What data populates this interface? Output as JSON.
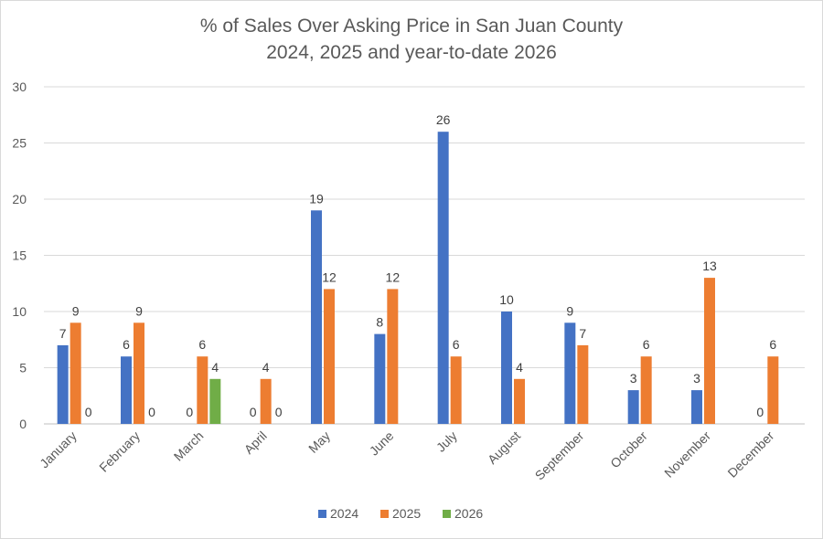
{
  "chart_data": {
    "type": "bar",
    "title": "% of Sales Over Asking Price in San Juan County",
    "subtitle": "2024, 2025 and year-to-date 2026",
    "categories": [
      "January",
      "February",
      "March",
      "April",
      "May",
      "June",
      "July",
      "August",
      "September",
      "October",
      "November",
      "December"
    ],
    "series": [
      {
        "name": "2024",
        "color": "#4472c4",
        "values": [
          7,
          6,
          0,
          0,
          19,
          8,
          26,
          10,
          9,
          3,
          3,
          0
        ]
      },
      {
        "name": "2025",
        "color": "#ed7d31",
        "values": [
          9,
          9,
          6,
          4,
          12,
          12,
          6,
          4,
          7,
          6,
          13,
          6
        ]
      },
      {
        "name": "2026",
        "color": "#70ad47",
        "values": [
          0,
          0,
          4,
          0,
          null,
          null,
          null,
          null,
          null,
          null,
          null,
          null
        ]
      }
    ],
    "ylim": [
      0,
      30
    ],
    "yticks": [
      0,
      5,
      10,
      15,
      20,
      25,
      30
    ],
    "grid": true,
    "legend": "bottom"
  }
}
